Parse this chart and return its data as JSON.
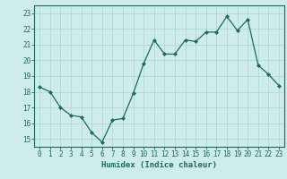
{
  "x": [
    0,
    1,
    2,
    3,
    4,
    5,
    6,
    7,
    8,
    9,
    10,
    11,
    12,
    13,
    14,
    15,
    16,
    17,
    18,
    19,
    20,
    21,
    22,
    23
  ],
  "y": [
    18.3,
    18.0,
    17.0,
    16.5,
    16.4,
    15.4,
    14.8,
    16.2,
    16.3,
    17.9,
    19.8,
    21.3,
    20.4,
    20.4,
    21.3,
    21.2,
    21.8,
    21.8,
    22.8,
    21.9,
    22.6,
    19.7,
    19.1,
    18.4
  ],
  "line_color": "#1a6b5e",
  "marker": "D",
  "marker_size": 2.0,
  "bg_color": "#cdecea",
  "grid_color": "#b0d8d4",
  "tick_color": "#1a6b5e",
  "xlabel": "Humidex (Indice chaleur)",
  "ylabel_ticks": [
    15,
    16,
    17,
    18,
    19,
    20,
    21,
    22,
    23
  ],
  "xlim": [
    -0.5,
    23.5
  ],
  "ylim": [
    14.5,
    23.5
  ],
  "label_fontsize": 6.5,
  "tick_fontsize": 5.5
}
